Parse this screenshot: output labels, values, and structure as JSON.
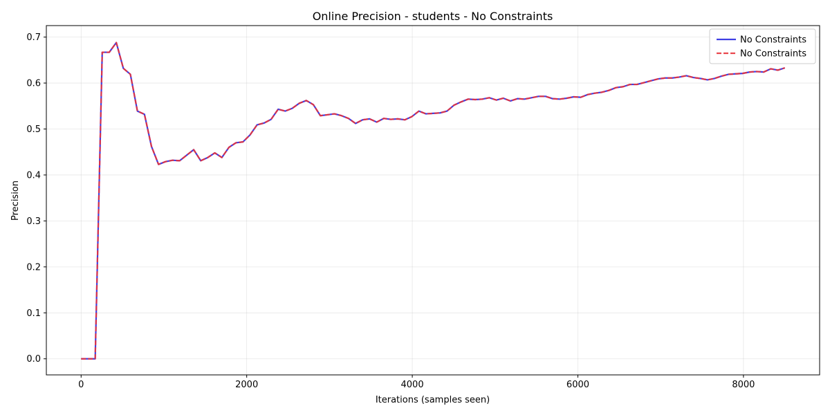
{
  "chart_data": {
    "type": "line",
    "title": "Online Precision - students - No Constraints",
    "xlabel": "Iterations (samples seen)",
    "ylabel": "Precision",
    "xlim": [
      -420,
      8920
    ],
    "ylim": [
      -0.035,
      0.725
    ],
    "xticks": [
      0,
      2000,
      4000,
      6000,
      8000
    ],
    "xtick_labels": [
      "0",
      "2000",
      "4000",
      "6000",
      "8000"
    ],
    "yticks": [
      0.0,
      0.1,
      0.2,
      0.3,
      0.4,
      0.5,
      0.6,
      0.7
    ],
    "ytick_labels": [
      "0.0",
      "0.1",
      "0.2",
      "0.3",
      "0.4",
      "0.5",
      "0.6",
      "0.7"
    ],
    "grid": true,
    "legend_position": "top-right",
    "x": [
      0,
      85,
      170,
      255,
      340,
      425,
      510,
      595,
      680,
      765,
      850,
      935,
      1020,
      1105,
      1190,
      1275,
      1360,
      1445,
      1530,
      1615,
      1700,
      1785,
      1870,
      1955,
      2040,
      2125,
      2210,
      2295,
      2380,
      2465,
      2550,
      2635,
      2720,
      2805,
      2890,
      2975,
      3060,
      3145,
      3230,
      3315,
      3400,
      3485,
      3570,
      3655,
      3740,
      3825,
      3910,
      3995,
      4080,
      4165,
      4250,
      4335,
      4420,
      4505,
      4590,
      4675,
      4760,
      4845,
      4930,
      5015,
      5100,
      5185,
      5270,
      5355,
      5440,
      5525,
      5610,
      5695,
      5780,
      5865,
      5950,
      6035,
      6120,
      6205,
      6290,
      6375,
      6460,
      6545,
      6630,
      6715,
      6800,
      6885,
      6970,
      7055,
      7140,
      7225,
      7310,
      7395,
      7480,
      7565,
      7650,
      7735,
      7820,
      7905,
      7990,
      8075,
      8160,
      8245,
      8330,
      8415,
      8500
    ],
    "series": [
      {
        "name": "No Constraints",
        "color": "#2a2ae0",
        "style": "solid",
        "values": [
          0.0,
          0.0,
          0.0,
          0.667,
          0.667,
          0.688,
          0.632,
          0.619,
          0.539,
          0.532,
          0.462,
          0.423,
          0.429,
          0.432,
          0.431,
          0.443,
          0.455,
          0.431,
          0.438,
          0.448,
          0.438,
          0.46,
          0.47,
          0.472,
          0.487,
          0.509,
          0.513,
          0.521,
          0.543,
          0.539,
          0.545,
          0.556,
          0.562,
          0.553,
          0.529,
          0.531,
          0.533,
          0.529,
          0.523,
          0.512,
          0.52,
          0.522,
          0.515,
          0.523,
          0.521,
          0.522,
          0.52,
          0.527,
          0.539,
          0.533,
          0.534,
          0.535,
          0.539,
          0.552,
          0.559,
          0.565,
          0.564,
          0.565,
          0.568,
          0.563,
          0.567,
          0.561,
          0.566,
          0.565,
          0.568,
          0.571,
          0.571,
          0.566,
          0.565,
          0.567,
          0.57,
          0.569,
          0.575,
          0.578,
          0.58,
          0.584,
          0.59,
          0.592,
          0.597,
          0.597,
          0.601,
          0.605,
          0.609,
          0.611,
          0.611,
          0.613,
          0.616,
          0.612,
          0.61,
          0.607,
          0.61,
          0.615,
          0.619,
          0.62,
          0.621,
          0.624,
          0.625,
          0.624,
          0.631,
          0.628,
          0.633
        ]
      },
      {
        "name": "No Constraints",
        "color": "#e8323a",
        "style": "dashed",
        "values": [
          0.0,
          0.0,
          0.0,
          0.667,
          0.667,
          0.688,
          0.632,
          0.619,
          0.539,
          0.532,
          0.462,
          0.423,
          0.429,
          0.432,
          0.431,
          0.443,
          0.455,
          0.431,
          0.438,
          0.448,
          0.438,
          0.46,
          0.47,
          0.472,
          0.487,
          0.509,
          0.513,
          0.521,
          0.543,
          0.539,
          0.545,
          0.556,
          0.562,
          0.553,
          0.529,
          0.531,
          0.533,
          0.529,
          0.523,
          0.512,
          0.52,
          0.522,
          0.515,
          0.523,
          0.521,
          0.522,
          0.52,
          0.527,
          0.539,
          0.533,
          0.534,
          0.535,
          0.539,
          0.552,
          0.559,
          0.565,
          0.564,
          0.565,
          0.568,
          0.563,
          0.567,
          0.561,
          0.566,
          0.565,
          0.568,
          0.571,
          0.571,
          0.566,
          0.565,
          0.567,
          0.57,
          0.569,
          0.575,
          0.578,
          0.58,
          0.584,
          0.59,
          0.592,
          0.597,
          0.597,
          0.601,
          0.605,
          0.609,
          0.611,
          0.611,
          0.613,
          0.616,
          0.612,
          0.61,
          0.607,
          0.61,
          0.615,
          0.619,
          0.62,
          0.621,
          0.624,
          0.625,
          0.624,
          0.631,
          0.628,
          0.633
        ]
      }
    ]
  }
}
